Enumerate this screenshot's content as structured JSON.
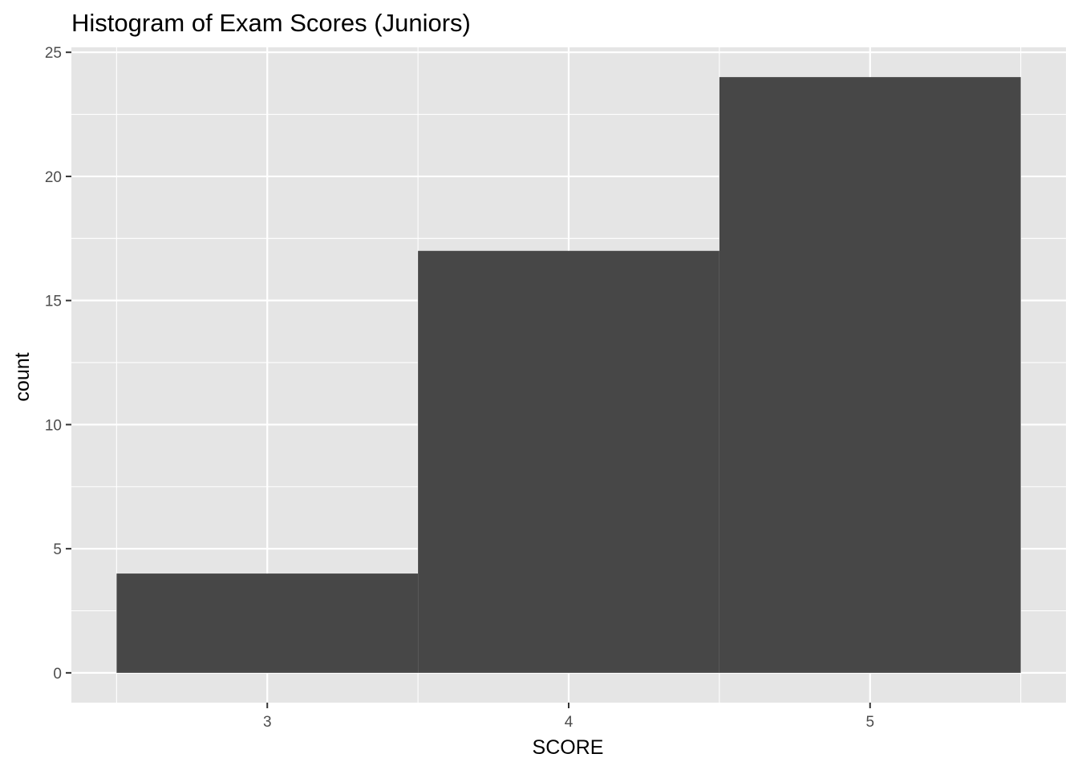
{
  "chart_data": {
    "type": "bar",
    "subtype": "histogram",
    "title": "Histogram of Exam Scores (Juniors)",
    "xlabel": "SCORE",
    "ylabel": "count",
    "bins": [
      {
        "start": 2.5,
        "end": 3.5,
        "count": 4
      },
      {
        "start": 3.5,
        "end": 4.5,
        "count": 17
      },
      {
        "start": 4.5,
        "end": 5.5,
        "count": 24
      }
    ],
    "x_ticks": [
      3,
      4,
      5
    ],
    "y_ticks": [
      0,
      5,
      10,
      15,
      20,
      25
    ],
    "xlim": [
      2.35,
      5.65
    ],
    "ylim": [
      -1.2,
      25.2
    ],
    "grid": true,
    "colors": {
      "panel": "#e5e5e5",
      "grid": "#ffffff",
      "bar": "#474747",
      "tick": "#333333"
    }
  }
}
